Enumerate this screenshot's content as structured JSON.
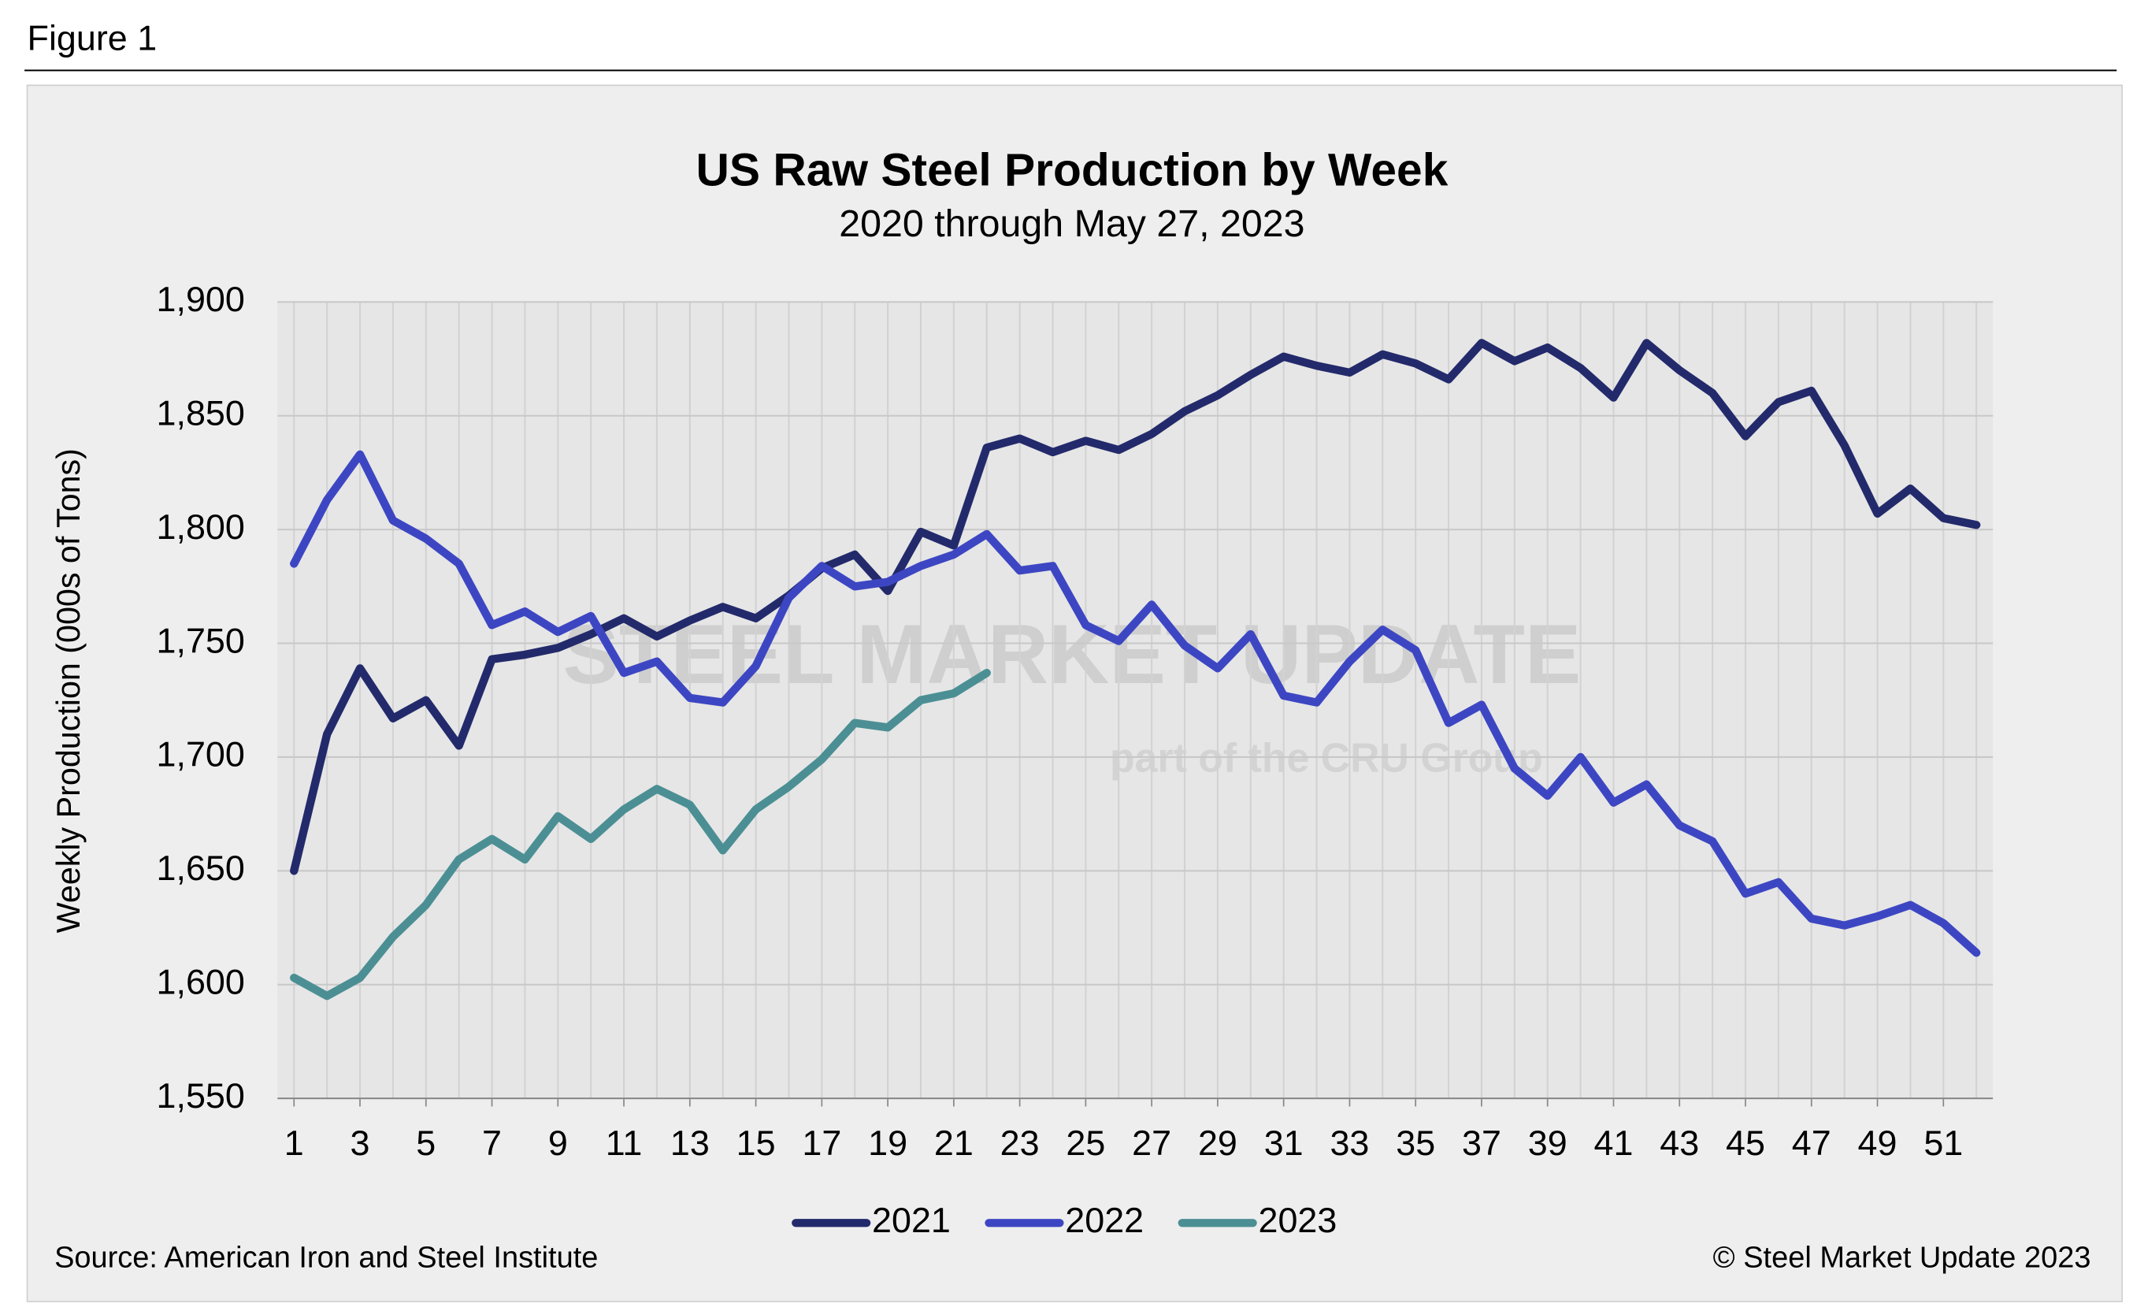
{
  "header": "Figure 1",
  "chart_data": {
    "type": "line",
    "title": "US Raw Steel Production by Week",
    "subtitle": "2020 through May 27, 2023",
    "y_label": "Weekly Production (000s of Tons)",
    "source": "Source: American Iron and Steel Institute",
    "copyright": "© Steel Market Update 2023",
    "watermark": "STEEL MARKET UPDATE",
    "watermark_sub": "part of the CRU Group",
    "x": [
      1,
      2,
      3,
      4,
      5,
      6,
      7,
      8,
      9,
      10,
      11,
      12,
      13,
      14,
      15,
      16,
      17,
      18,
      19,
      20,
      21,
      22,
      23,
      24,
      25,
      26,
      27,
      28,
      29,
      30,
      31,
      32,
      33,
      34,
      35,
      36,
      37,
      38,
      39,
      40,
      41,
      42,
      43,
      44,
      45,
      46,
      47,
      48,
      49,
      50,
      51,
      52
    ],
    "xlim": [
      0.5,
      52.5
    ],
    "xticks": [
      1,
      3,
      5,
      7,
      9,
      11,
      13,
      15,
      17,
      19,
      21,
      23,
      25,
      27,
      29,
      31,
      33,
      35,
      37,
      39,
      41,
      43,
      45,
      47,
      49,
      51
    ],
    "ylim": [
      1550,
      1900
    ],
    "yticks": [
      {
        "value": 1550,
        "label": "1,550"
      },
      {
        "value": 1600,
        "label": "1,600"
      },
      {
        "value": 1650,
        "label": "1,650"
      },
      {
        "value": 1700,
        "label": "1,700"
      },
      {
        "value": 1750,
        "label": "1,750"
      },
      {
        "value": 1800,
        "label": "1,800"
      },
      {
        "value": 1850,
        "label": "1,850"
      },
      {
        "value": 1900,
        "label": "1,900"
      }
    ],
    "grid": true,
    "legend": "bottom",
    "series": [
      {
        "name": "2021",
        "color": "#232a6b",
        "values": [
          1650,
          1710,
          1739,
          1717,
          1725,
          1705,
          1743,
          1745,
          1748,
          1754,
          1761,
          1753,
          1760,
          1766,
          1761,
          1771,
          1783,
          1789,
          1773,
          1799,
          1793,
          1836,
          1840,
          1834,
          1839,
          1835,
          1842,
          1852,
          1859,
          1868,
          1876,
          1872,
          1869,
          1877,
          1873,
          1866,
          1882,
          1874,
          1880,
          1871,
          1858,
          1882,
          1870,
          1860,
          1841,
          1856,
          1861,
          1837,
          1807,
          1818,
          1805,
          1802
        ]
      },
      {
        "name": "2022",
        "color": "#3d46c2",
        "values": [
          1785,
          1813,
          1833,
          1804,
          1796,
          1785,
          1758,
          1764,
          1755,
          1762,
          1737,
          1742,
          1726,
          1724,
          1740,
          1770,
          1784,
          1775,
          1777,
          1784,
          1789,
          1798,
          1782,
          1784,
          1758,
          1751,
          1767,
          1749,
          1739,
          1754,
          1727,
          1724,
          1742,
          1756,
          1747,
          1715,
          1723,
          1695,
          1683,
          1700,
          1680,
          1688,
          1670,
          1663,
          1640,
          1645,
          1629,
          1626,
          1630,
          1635,
          1627,
          1614
        ]
      },
      {
        "name": "2023",
        "color": "#4b8f94",
        "values": [
          1603,
          1595,
          1603,
          1621,
          1635,
          1655,
          1664,
          1655,
          1674,
          1664,
          1677,
          1686,
          1679,
          1659,
          1677,
          1687,
          1699,
          1715,
          1713,
          1725,
          1728,
          1737,
          null,
          null,
          null,
          null,
          null,
          null,
          null,
          null,
          null,
          null,
          null,
          null,
          null,
          null,
          null,
          null,
          null,
          null,
          null,
          null,
          null,
          null,
          null,
          null,
          null,
          null,
          null,
          null,
          null,
          null
        ]
      }
    ]
  }
}
